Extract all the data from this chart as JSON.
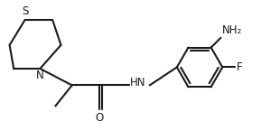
{
  "bg_color": "#ffffff",
  "line_color": "#1a1a1a",
  "line_width": 1.5,
  "font_size": 8.5,
  "figsize": [
    3.1,
    1.55
  ],
  "dpi": 100,
  "xlim": [
    0,
    10
  ],
  "ylim": [
    0,
    5
  ]
}
